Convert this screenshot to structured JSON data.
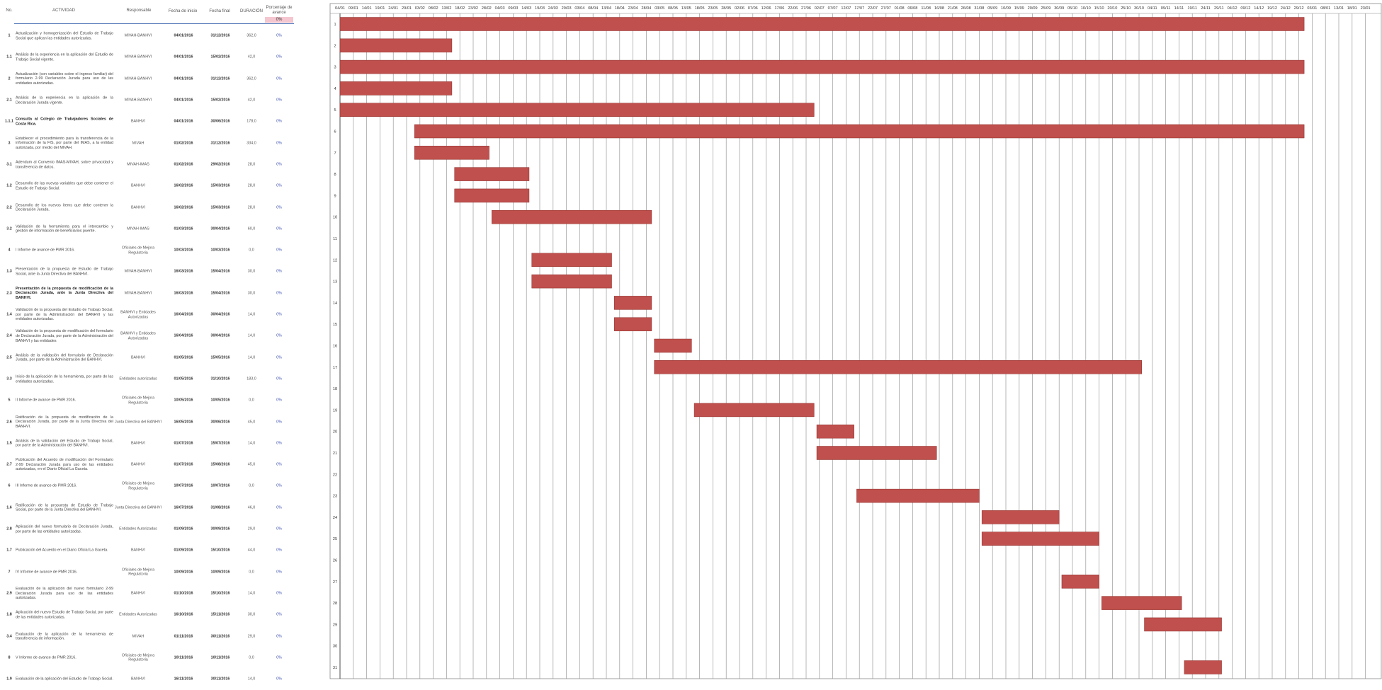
{
  "table": {
    "headers": {
      "no": "No.",
      "activity": "ACTIVIDAD",
      "responsible": "Responsable",
      "start": "Fecha de inicio",
      "end": "Fecha final",
      "duration": "DURACIÓN",
      "percent": "Porcentaje de avance",
      "percent_value": "0%"
    },
    "rows": [
      {
        "no": "1",
        "activity": "Actualización y homogenización del Estudio de Trabajo Social que aplican las entidades autorizadas.",
        "responsible": "MIVAH-BANHVI",
        "start": "04/01/2016",
        "end": "31/12/2016",
        "duration": "362,0",
        "percent": "0%",
        "bold": false
      },
      {
        "no": "1.1",
        "activity": "Análisis de la experiencia en la aplicación del Estudio de Trabajo Social vigente.",
        "responsible": "MIVAH-BANHVI",
        "start": "04/01/2016",
        "end": "15/02/2016",
        "duration": "42,0",
        "percent": "0%",
        "bold": false
      },
      {
        "no": "2",
        "activity": "Actualización (con variables sobre el ingreso familiar) del formulario 2-99 Declaración Jurada para uso de las entidades autorizadas.",
        "responsible": "MIVAH-BANHVI",
        "start": "04/01/2016",
        "end": "31/12/2016",
        "duration": "362,0",
        "percent": "0%",
        "bold": false
      },
      {
        "no": "2.1",
        "activity": "Análisis de la experiencia en la aplicación de la Declaración Jurada vigente.",
        "responsible": "MIVAH-BANHVI",
        "start": "04/01/2016",
        "end": "15/02/2016",
        "duration": "42,0",
        "percent": "0%",
        "bold": false
      },
      {
        "no": "1.1.1",
        "activity": "Consulta al Colegio de Trabajadores Sociales de Costa Rica.",
        "responsible": "BANHVI",
        "start": "04/01/2016",
        "end": "30/06/2016",
        "duration": "178,0",
        "percent": "0%",
        "bold": true
      },
      {
        "no": "3",
        "activity": "Establecer el procedimiento para la transferencia de la información de la FIS, por parte del IMAS, a la entidad autorizada, por medio del MIVAH.",
        "responsible": "MIVAH",
        "start": "01/02/2016",
        "end": "31/12/2016",
        "duration": "334,0",
        "percent": "0%",
        "bold": false
      },
      {
        "no": "3.1",
        "activity": "Adendum al Convenio IMAS-MIVAH, sobre privacidad y transferencia de datos.",
        "responsible": "MIVAH-IMAS",
        "start": "01/02/2016",
        "end": "29/02/2016",
        "duration": "28,0",
        "percent": "0%",
        "bold": false
      },
      {
        "no": "1.2",
        "activity": "Desarrollo de las nuevas variables que debe contener el Estudio de Trabajo Social.",
        "responsible": "BANHVI",
        "start": "16/02/2016",
        "end": "15/03/2016",
        "duration": "28,0",
        "percent": "0%",
        "bold": false
      },
      {
        "no": "2.2",
        "activity": "Desarrollo de los nuevos ítems que debe contener la Declaración Jurada.",
        "responsible": "BANHVI",
        "start": "16/02/2016",
        "end": "15/03/2016",
        "duration": "28,0",
        "percent": "0%",
        "bold": false
      },
      {
        "no": "3.2",
        "activity": "Validación de la herramienta para el intercambio y gestión de información de beneficiarios puente.",
        "responsible": "MIVAH-IMAS",
        "start": "01/03/2016",
        "end": "30/04/2016",
        "duration": "60,0",
        "percent": "0%",
        "bold": false
      },
      {
        "no": "4",
        "activity": "I Informe de avance de PMR 2016.",
        "responsible": "Oficiales de Mejora Regulatoria",
        "start": "10/03/2016",
        "end": "10/03/2016",
        "duration": "0,0",
        "percent": "0%",
        "bold": false
      },
      {
        "no": "1.3",
        "activity": "Presentación de la propuesta de Estudio de Trabajo Social, ante la Junta Directiva del BANHVI.",
        "responsible": "MIVAH-BANHVI",
        "start": "16/03/2016",
        "end": "15/04/2016",
        "duration": "30,0",
        "percent": "0%",
        "bold": false
      },
      {
        "no": "2.3",
        "activity": "Presentación de la propuesta de modificación de la Declaración Jurada, ante la Junta Directiva del BANHVI.",
        "responsible": "MIVAH-BANHVI",
        "start": "16/03/2016",
        "end": "15/04/2016",
        "duration": "30,0",
        "percent": "0%",
        "bold": true
      },
      {
        "no": "1.4",
        "activity": "Validación de la propuesta del Estudio de Trabajo Social, por parte de la Administración del BANHVI y las entidades autorizadas.",
        "responsible": "BANHVI y Entidades Autorizadas",
        "start": "16/04/2016",
        "end": "30/04/2016",
        "duration": "14,0",
        "percent": "0%",
        "bold": false
      },
      {
        "no": "2.4",
        "activity": "Validación de la propuesta de modificación del formulario de Declaración Jurada, por parte de la Administración del BANHVI y las entidades",
        "responsible": "BANHVI y Entidades Autorizadas",
        "start": "16/04/2016",
        "end": "30/04/2016",
        "duration": "14,0",
        "percent": "0%",
        "bold": false
      },
      {
        "no": "2.5",
        "activity": "Análisis de la validación del formulario de Declaración Jurada, por parte de la Administración del BANHVI.",
        "responsible": "BANHVI",
        "start": "01/05/2016",
        "end": "15/05/2016",
        "duration": "14,0",
        "percent": "0%",
        "bold": false
      },
      {
        "no": "3.3",
        "activity": "Inicio de la aplicación de la herramienta, por parte de las entidades autorizadas.",
        "responsible": "Entidades autorizadas",
        "start": "01/05/2016",
        "end": "31/10/2016",
        "duration": "183,0",
        "percent": "0%",
        "bold": false
      },
      {
        "no": "5",
        "activity": "II Informe de avance de PMR 2016.",
        "responsible": "Oficiales de Mejora Regulatoria",
        "start": "10/05/2016",
        "end": "10/05/2016",
        "duration": "0,0",
        "percent": "0%",
        "bold": false
      },
      {
        "no": "2.6",
        "activity": "Ratificación de la propuesta de modificación de la Declaración Jurada, por parte de la Junta Directiva del BANHVI.",
        "responsible": "Junta Directiva del BANHVI",
        "start": "16/05/2016",
        "end": "30/06/2016",
        "duration": "45,0",
        "percent": "0%",
        "bold": false
      },
      {
        "no": "1.5",
        "activity": "Análisis de la validación del Estudio de Trabajo Social, por parte de la Administración del BANHVI.",
        "responsible": "BANHVI",
        "start": "01/07/2016",
        "end": "15/07/2016",
        "duration": "14,0",
        "percent": "0%",
        "bold": false
      },
      {
        "no": "2.7",
        "activity": "Publicación del Acuerdo de modificación del Formulario 2-99 Declaración Jurada para uso de las entidades autorizadas, en el Diario Oficial La Gaceta.",
        "responsible": "BANHVI",
        "start": "01/07/2016",
        "end": "15/08/2016",
        "duration": "45,0",
        "percent": "0%",
        "bold": false
      },
      {
        "no": "6",
        "activity": "III Informe de avance de PMR 2016.",
        "responsible": "Oficiales de Mejora Regulatoria",
        "start": "10/07/2016",
        "end": "10/07/2016",
        "duration": "0,0",
        "percent": "0%",
        "bold": false
      },
      {
        "no": "1.6",
        "activity": "Ratificación de la propuesta de Estudio de Trabajo Social, por parte de la Junta Directiva del BANHVI.",
        "responsible": "Junta Directiva del BANHVI",
        "start": "16/07/2016",
        "end": "31/08/2016",
        "duration": "46,0",
        "percent": "0%",
        "bold": false
      },
      {
        "no": "2.8",
        "activity": "Aplicación del nuevo formulario de Declaración Jurada, por parte de las entidades autorizadas.",
        "responsible": "Entidades Autorizadas",
        "start": "01/09/2016",
        "end": "30/09/2016",
        "duration": "29,0",
        "percent": "0%",
        "bold": false
      },
      {
        "no": "1.7",
        "activity": "Publicación del Acuerdo en el Diario Oficial La Gaceta.",
        "responsible": "BANHVI",
        "start": "01/09/2016",
        "end": "15/10/2016",
        "duration": "44,0",
        "percent": "0%",
        "bold": false
      },
      {
        "no": "7",
        "activity": "IV Informe de avance de PMR 2016.",
        "responsible": "Oficiales de Mejora Regulatoria",
        "start": "10/09/2016",
        "end": "10/09/2016",
        "duration": "0,0",
        "percent": "0%",
        "bold": false
      },
      {
        "no": "2.9",
        "activity": "Evaluación de la aplicación del nuevo formulario 2-99 Declaración Jurada para uso de las entidades autorizadas.",
        "responsible": "BANHVI",
        "start": "01/10/2016",
        "end": "15/10/2016",
        "duration": "14,0",
        "percent": "0%",
        "bold": false
      },
      {
        "no": "1.8",
        "activity": "Aplicación del nuevo Estudio de Trabajo Social, por parte de las entidades autorizadas.",
        "responsible": "Entidades Autorizadas",
        "start": "16/10/2016",
        "end": "15/11/2016",
        "duration": "30,0",
        "percent": "0%",
        "bold": false
      },
      {
        "no": "3.4",
        "activity": "Evaluación de la aplicación de la herramienta de transferencia de información.",
        "responsible": "MIVAH",
        "start": "01/11/2016",
        "end": "30/11/2016",
        "duration": "29,0",
        "percent": "0%",
        "bold": false
      },
      {
        "no": "8",
        "activity": "V Informe de avance de PMR 2016.",
        "responsible": "Oficiales de Mejora Regulatoria",
        "start": "10/11/2016",
        "end": "10/11/2016",
        "duration": "0,0",
        "percent": "0%",
        "bold": false
      },
      {
        "no": "1.9",
        "activity": "Evaluación de la aplicación del Estudio de Trabajo Social.",
        "responsible": "BANHVI",
        "start": "16/11/2016",
        "end": "30/11/2016",
        "duration": "14,0",
        "percent": "0%",
        "bold": false
      }
    ]
  },
  "chart_data": {
    "type": "gantt",
    "colors": {
      "bar": "#c0504d",
      "grid": "#999999",
      "axis": "#333333"
    },
    "x_ticks": [
      "04/01",
      "09/01",
      "14/01",
      "19/01",
      "24/01",
      "29/01",
      "03/02",
      "08/02",
      "13/02",
      "18/02",
      "23/02",
      "28/02",
      "04/03",
      "09/03",
      "14/03",
      "19/03",
      "24/03",
      "29/03",
      "03/04",
      "08/04",
      "13/04",
      "18/04",
      "23/04",
      "28/04",
      "03/05",
      "08/05",
      "13/05",
      "18/05",
      "23/05",
      "28/05",
      "02/06",
      "07/06",
      "12/06",
      "17/06",
      "22/06",
      "27/06",
      "02/07",
      "07/07",
      "12/07",
      "17/07",
      "22/07",
      "27/07",
      "01/08",
      "06/08",
      "11/08",
      "16/08",
      "21/08",
      "26/08",
      "31/08",
      "05/09",
      "10/09",
      "15/09",
      "20/09",
      "25/09",
      "30/09",
      "05/10",
      "10/10",
      "15/10",
      "20/10",
      "25/10",
      "30/10",
      "04/11",
      "09/11",
      "14/11",
      "19/11",
      "24/11",
      "29/11",
      "04/12",
      "09/12",
      "14/12",
      "19/12",
      "24/12",
      "29/12",
      "03/01",
      "08/01",
      "13/01",
      "18/01",
      "23/01"
    ],
    "tasks": [
      {
        "label": "1",
        "start": "2016-01-04",
        "end": "2016-12-31"
      },
      {
        "label": "2",
        "start": "2016-01-04",
        "end": "2016-02-15"
      },
      {
        "label": "3",
        "start": "2016-01-04",
        "end": "2016-12-31"
      },
      {
        "label": "4",
        "start": "2016-01-04",
        "end": "2016-02-15"
      },
      {
        "label": "5",
        "start": "2016-01-04",
        "end": "2016-06-30"
      },
      {
        "label": "6",
        "start": "2016-02-01",
        "end": "2016-12-31"
      },
      {
        "label": "7",
        "start": "2016-02-01",
        "end": "2016-02-29"
      },
      {
        "label": "8",
        "start": "2016-02-16",
        "end": "2016-03-15"
      },
      {
        "label": "9",
        "start": "2016-02-16",
        "end": "2016-03-15"
      },
      {
        "label": "10",
        "start": "2016-03-01",
        "end": "2016-04-30"
      },
      {
        "label": "11",
        "start": null,
        "end": null
      },
      {
        "label": "12",
        "start": "2016-03-16",
        "end": "2016-04-15"
      },
      {
        "label": "13",
        "start": "2016-03-16",
        "end": "2016-04-15"
      },
      {
        "label": "14",
        "start": "2016-04-16",
        "end": "2016-04-30"
      },
      {
        "label": "15",
        "start": "2016-04-16",
        "end": "2016-04-30"
      },
      {
        "label": "16",
        "start": "2016-05-01",
        "end": "2016-05-15"
      },
      {
        "label": "17",
        "start": "2016-05-01",
        "end": "2016-10-31"
      },
      {
        "label": "18",
        "start": null,
        "end": null
      },
      {
        "label": "19",
        "start": "2016-05-16",
        "end": "2016-06-30"
      },
      {
        "label": "20",
        "start": "2016-07-01",
        "end": "2016-07-15"
      },
      {
        "label": "21",
        "start": "2016-07-01",
        "end": "2016-08-15"
      },
      {
        "label": "22",
        "start": null,
        "end": null
      },
      {
        "label": "23",
        "start": "2016-07-16",
        "end": "2016-08-31"
      },
      {
        "label": "24",
        "start": "2016-09-01",
        "end": "2016-09-30"
      },
      {
        "label": "25",
        "start": "2016-09-01",
        "end": "2016-10-15"
      },
      {
        "label": "26",
        "start": null,
        "end": null
      },
      {
        "label": "27",
        "start": "2016-10-01",
        "end": "2016-10-15"
      },
      {
        "label": "28",
        "start": "2016-10-16",
        "end": "2016-11-15"
      },
      {
        "label": "29",
        "start": "2016-11-01",
        "end": "2016-11-30"
      },
      {
        "label": "30",
        "start": null,
        "end": null
      },
      {
        "label": "31",
        "start": "2016-11-16",
        "end": "2016-11-30"
      }
    ]
  }
}
